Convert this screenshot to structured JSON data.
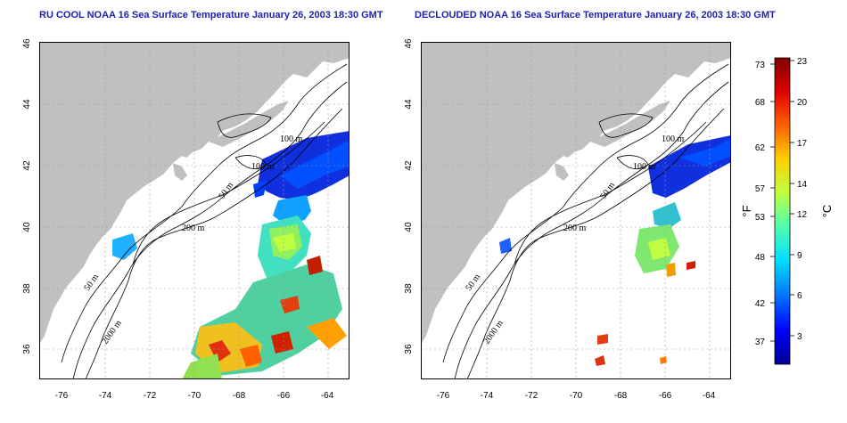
{
  "titles": {
    "left": "RU COOL NOAA 16 Sea Surface Temperature January 26, 2003 18:30 GMT",
    "right": "DECLOUDED NOAA 16 Sea Surface Temperature January 26, 2003 18:30 GMT"
  },
  "axes": {
    "x_ticks": [
      "-76",
      "-74",
      "-72",
      "-70",
      "-68",
      "-66",
      "-64"
    ],
    "y_ticks": [
      "36",
      "38",
      "40",
      "42",
      "44",
      "46"
    ]
  },
  "contour_labels": {
    "left": [
      "100 m",
      "100 m",
      "50 m",
      "200 m",
      "50 m",
      "2000 m"
    ],
    "right": [
      "100 m",
      "100 m",
      "50 m",
      "200 m",
      "50 m",
      "2000 m"
    ]
  },
  "colorbar": {
    "f_label": "°F",
    "c_label": "°C",
    "f_ticks": [
      "73",
      "68",
      "62",
      "57",
      "53",
      "48",
      "42",
      "37"
    ],
    "c_ticks": [
      "23",
      "20",
      "17",
      "14",
      "12",
      "9",
      "6",
      "3"
    ],
    "colors": [
      "#00008f",
      "#0000ff",
      "#0070ff",
      "#00dfff",
      "#50ffaf",
      "#bfff40",
      "#ffcf00",
      "#ff6000",
      "#df0000",
      "#800000"
    ]
  },
  "colors": {
    "land": "#c0c0c0",
    "title": "#1f1fb0"
  }
}
